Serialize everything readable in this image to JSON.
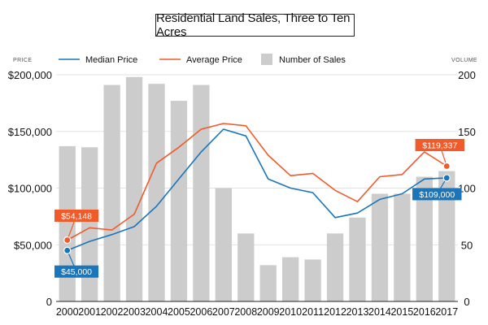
{
  "chart_data": {
    "type": "bar+line",
    "title": "Residential Land Sales, Three to Ten Acres",
    "left_axis_label": "PRICE",
    "right_axis_label": "VOLUME",
    "categories": [
      "2000",
      "2001",
      "2002",
      "2003",
      "2004",
      "2005",
      "2006",
      "2007",
      "2008",
      "2009",
      "2010",
      "2011",
      "2012",
      "2013",
      "2014",
      "2015",
      "2016",
      "2017"
    ],
    "y_left": {
      "min": 0,
      "max": 200000,
      "ticks": [
        0,
        50000,
        100000,
        150000,
        200000
      ],
      "tick_labels": [
        "0",
        "$50,000",
        "$100,000",
        "$150,000",
        "$200,000"
      ]
    },
    "y_right": {
      "min": 0,
      "max": 200,
      "ticks": [
        0,
        50,
        100,
        150,
        200
      ],
      "tick_labels": [
        "0",
        "50",
        "100",
        "150",
        "200"
      ]
    },
    "bars": {
      "name": "Number of Sales",
      "color": "#cccccc",
      "values": [
        137,
        136,
        191,
        198,
        192,
        177,
        191,
        100,
        60,
        32,
        39,
        37,
        60,
        74,
        95,
        95,
        110,
        115
      ]
    },
    "series": [
      {
        "name": "Median Price",
        "color": "#1a75bb",
        "axis": "left",
        "values": [
          45000,
          53000,
          59000,
          66000,
          84000,
          108000,
          132000,
          152000,
          146000,
          108000,
          100000,
          96000,
          74000,
          78000,
          90000,
          95000,
          108000,
          109000
        ]
      },
      {
        "name": "Average Price",
        "color": "#f15a29",
        "axis": "left",
        "values": [
          54148,
          65000,
          63000,
          77000,
          122000,
          136000,
          152000,
          157000,
          155000,
          129000,
          111000,
          113000,
          98000,
          88000,
          110000,
          112000,
          132000,
          119337
        ]
      }
    ],
    "callouts": [
      {
        "text": "$54,148",
        "series": "Average Price",
        "index": 0,
        "color": "#f15a29"
      },
      {
        "text": "$45,000",
        "series": "Median Price",
        "index": 0,
        "color": "#1a75bb"
      },
      {
        "text": "$119,337",
        "series": "Average Price",
        "index": 17,
        "color": "#f15a29"
      },
      {
        "text": "$109,000",
        "series": "Median Price",
        "index": 17,
        "color": "#1a75bb"
      }
    ],
    "legend": {
      "placement": "top",
      "entries": [
        "Median Price",
        "Average Price",
        "Number of Sales"
      ]
    },
    "grid": true
  }
}
